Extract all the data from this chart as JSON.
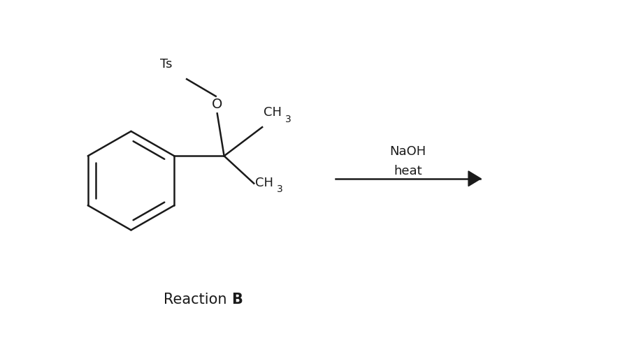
{
  "background_color": "#ffffff",
  "fig_width": 9.17,
  "fig_height": 4.84,
  "dpi": 100,
  "reaction_label": "Reaction ",
  "reaction_label_bold": "B",
  "arrow_label_line1": "NaOH",
  "arrow_label_line2": "heat",
  "text_color": "#1a1a1a",
  "line_color": "#1a1a1a",
  "line_width": 1.8,
  "font_size_main": 13,
  "font_size_label": 15
}
